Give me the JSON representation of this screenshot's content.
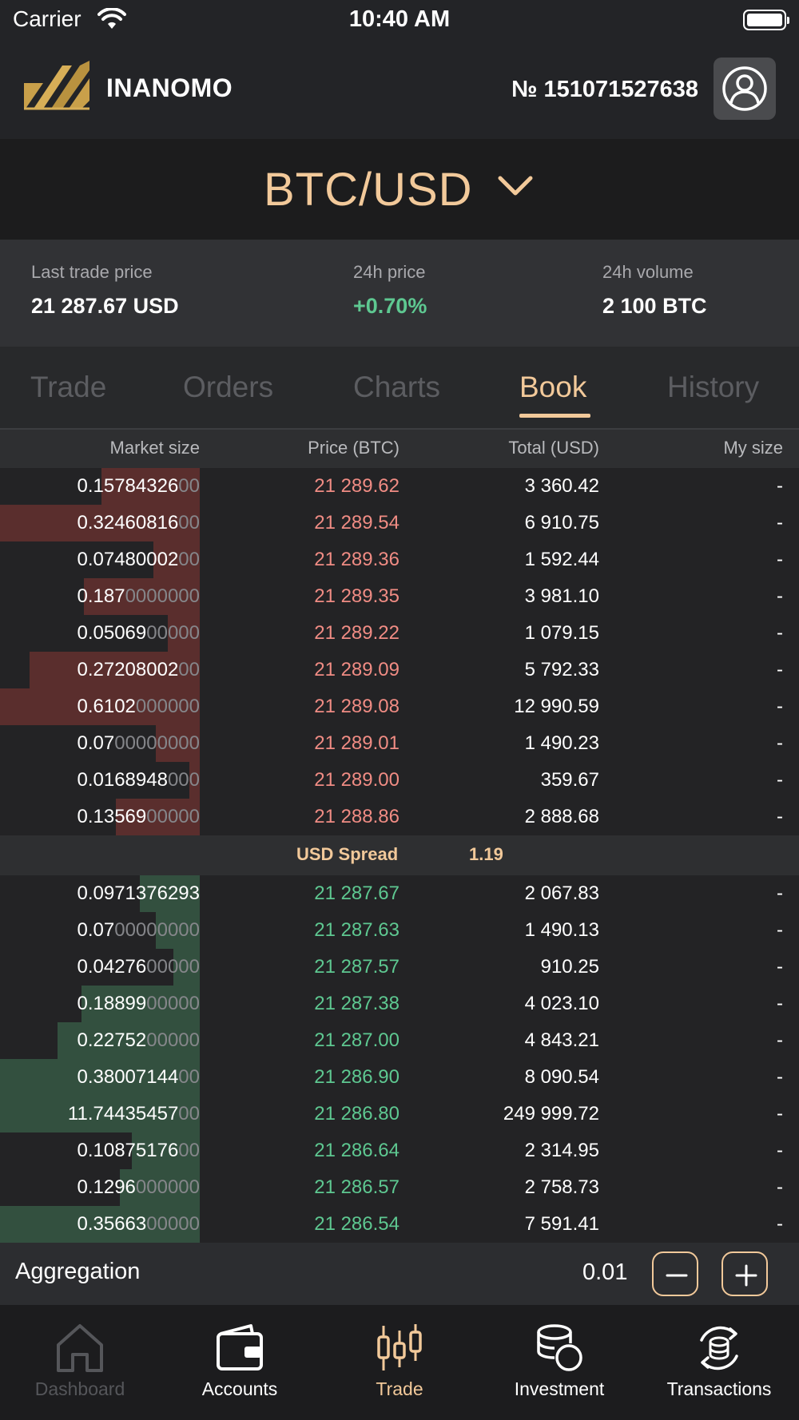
{
  "status_bar": {
    "carrier": "Carrier",
    "time": "10:40 AM"
  },
  "header": {
    "brand": "INANOMO",
    "account_number": "№ 151071527638"
  },
  "pair": {
    "label": "BTC/USD"
  },
  "stats": {
    "last_trade_label": "Last trade price",
    "last_trade_value": "21 287.67 USD",
    "price_24h_label": "24h price",
    "price_24h_value": "+0.70%",
    "volume_24h_label": "24h volume",
    "volume_24h_value": "2 100 BTC"
  },
  "tabs": [
    {
      "label": "Trade"
    },
    {
      "label": "Orders"
    },
    {
      "label": "Charts"
    },
    {
      "label": "Book"
    },
    {
      "label": "History"
    }
  ],
  "active_tab": "Book",
  "columns": {
    "size": "Market size",
    "price": "Price (BTC)",
    "total": "Total (USD)",
    "my": "My size"
  },
  "asks": [
    {
      "size_main": "0.15784326",
      "size_dim": "00",
      "price": "21 289.62",
      "total": "3 360.42",
      "my": "-",
      "depth": 0.49
    },
    {
      "size_main": "0.32460816",
      "size_dim": "00",
      "price": "21 289.54",
      "total": "6 910.75",
      "my": "-",
      "depth": 1.0
    },
    {
      "size_main": "0.07480002",
      "size_dim": "00",
      "price": "21 289.36",
      "total": "1 592.44",
      "my": "-",
      "depth": 0.23
    },
    {
      "size_main": "0.187",
      "size_dim": "0000000",
      "price": "21 289.35",
      "total": "3 981.10",
      "my": "-",
      "depth": 0.58
    },
    {
      "size_main": "0.05069",
      "size_dim": "00000",
      "price": "21 289.22",
      "total": "1 079.15",
      "my": "-",
      "depth": 0.16
    },
    {
      "size_main": "0.27208002",
      "size_dim": "00",
      "price": "21 289.09",
      "total": "5 792.33",
      "my": "-",
      "depth": 0.85
    },
    {
      "size_main": "0.6102",
      "size_dim": "000000",
      "price": "21 289.08",
      "total": "12 990.59",
      "my": "-",
      "depth": 1.0
    },
    {
      "size_main": "0.07",
      "size_dim": "00000000",
      "price": "21 289.01",
      "total": "1 490.23",
      "my": "-",
      "depth": 0.22
    },
    {
      "size_main": "0.0168948",
      "size_dim": "000",
      "price": "21 289.00",
      "total": "359.67",
      "my": "-",
      "depth": 0.05
    },
    {
      "size_main": "0.13569",
      "size_dim": "00000",
      "price": "21 288.86",
      "total": "2 888.68",
      "my": "-",
      "depth": 0.42
    }
  ],
  "spread": {
    "label": "USD Spread",
    "value": "1.19"
  },
  "bids": [
    {
      "size_main": "0.0971376293",
      "size_dim": "",
      "price": "21 287.67",
      "total": "2 067.83",
      "my": "-",
      "depth": 0.3
    },
    {
      "size_main": "0.07",
      "size_dim": "00000000",
      "price": "21 287.63",
      "total": "1 490.13",
      "my": "-",
      "depth": 0.22
    },
    {
      "size_main": "0.04276",
      "size_dim": "00000",
      "price": "21 287.57",
      "total": "910.25",
      "my": "-",
      "depth": 0.13
    },
    {
      "size_main": "0.18899",
      "size_dim": "00000",
      "price": "21 287.38",
      "total": "4 023.10",
      "my": "-",
      "depth": 0.59
    },
    {
      "size_main": "0.22752",
      "size_dim": "00000",
      "price": "21 287.00",
      "total": "4 843.21",
      "my": "-",
      "depth": 0.71
    },
    {
      "size_main": "0.38007144",
      "size_dim": "00",
      "price": "21 286.90",
      "total": "8 090.54",
      "my": "-",
      "depth": 1.0
    },
    {
      "size_main": "11.74435457",
      "size_dim": "00",
      "price": "21 286.80",
      "total": "249 999.72",
      "my": "-",
      "depth": 1.0
    },
    {
      "size_main": "0.10875176",
      "size_dim": "00",
      "price": "21 286.64",
      "total": "2 314.95",
      "my": "-",
      "depth": 0.34
    },
    {
      "size_main": "0.1296",
      "size_dim": "000000",
      "price": "21 286.57",
      "total": "2 758.73",
      "my": "-",
      "depth": 0.4
    },
    {
      "size_main": "0.35663",
      "size_dim": "00000",
      "price": "21 286.54",
      "total": "7 591.41",
      "my": "-",
      "depth": 1.0
    }
  ],
  "aggregation": {
    "label": "Aggregation",
    "value": "0.01"
  },
  "nav": [
    {
      "label": "Dashboard",
      "icon": "home-icon",
      "state": "disabled"
    },
    {
      "label": "Accounts",
      "icon": "wallet-icon",
      "state": "normal"
    },
    {
      "label": "Trade",
      "icon": "candlestick-icon",
      "state": "active"
    },
    {
      "label": "Investment",
      "icon": "coins-icon",
      "state": "normal"
    },
    {
      "label": "Transactions",
      "icon": "coin-exchange-icon",
      "state": "normal"
    }
  ],
  "colors": {
    "accent": "#f2c99a",
    "ask": "#f08c84",
    "bid": "#5ec891",
    "ask_depth": "#5a2e2d",
    "bid_depth": "#33503f"
  }
}
